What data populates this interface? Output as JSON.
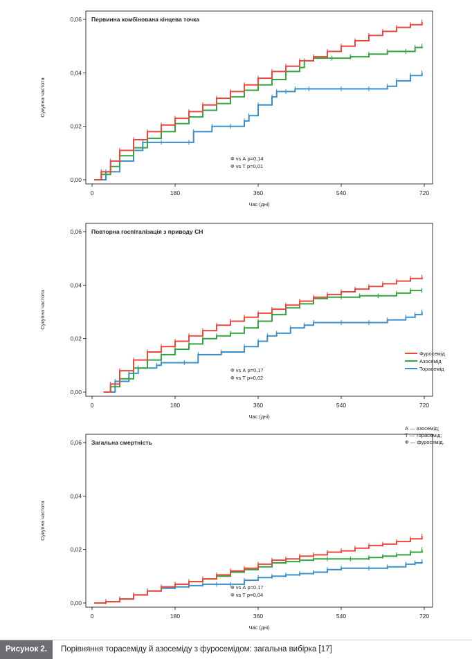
{
  "figure": {
    "caption_label": "Рисунок 2.",
    "caption_text": "Порівняння торасеміду й азосеміду з фуросемідом: загальна вибірка [17]"
  },
  "legend": [
    {
      "label": "Фуросемід",
      "color": "#e8483f"
    },
    {
      "label": "Азосемід",
      "color": "#33a53f"
    },
    {
      "label": "Торасемід",
      "color": "#3a8fcb"
    }
  ],
  "abbreviations": [
    "А — азосемід;",
    "Т — торасемід;",
    "Ф — фуросемід."
  ],
  "chart_data": [
    {
      "type": "line",
      "title": "Первинна комбінована кінцева точка",
      "xlabel": "Час (дні)",
      "ylabel": "Сукупна частота",
      "xlim": [
        0,
        720
      ],
      "ylim": [
        0,
        0.06
      ],
      "x_ticks": [
        "0",
        "180",
        "360",
        "540",
        "720"
      ],
      "y_ticks": [
        "0,00",
        "0,02",
        "0,04",
        "0,06"
      ],
      "annotations": [
        "Ф vs А p=0,14",
        "Ф vs Т p=0,01"
      ],
      "series": [
        {
          "name": "Фуросемід",
          "color": "#e8483f",
          "x": [
            5,
            20,
            40,
            60,
            90,
            120,
            150,
            180,
            210,
            240,
            270,
            300,
            330,
            360,
            390,
            420,
            450,
            480,
            510,
            540,
            570,
            600,
            630,
            660,
            690,
            715
          ],
          "y": [
            0.0,
            0.003,
            0.007,
            0.011,
            0.015,
            0.018,
            0.0205,
            0.023,
            0.0255,
            0.028,
            0.0305,
            0.033,
            0.0355,
            0.038,
            0.0405,
            0.0425,
            0.0445,
            0.046,
            0.048,
            0.05,
            0.052,
            0.054,
            0.0555,
            0.057,
            0.058,
            0.059
          ]
        },
        {
          "name": "Азосемід",
          "color": "#33a53f",
          "x": [
            5,
            20,
            40,
            60,
            90,
            120,
            150,
            180,
            210,
            240,
            270,
            300,
            330,
            360,
            390,
            420,
            450,
            460,
            480,
            520,
            560,
            600,
            640,
            680,
            700,
            715
          ],
          "y": [
            0.0,
            0.002,
            0.005,
            0.009,
            0.012,
            0.0155,
            0.018,
            0.021,
            0.0235,
            0.026,
            0.0285,
            0.031,
            0.0335,
            0.0355,
            0.0375,
            0.0405,
            0.042,
            0.0445,
            0.0455,
            0.0455,
            0.046,
            0.047,
            0.048,
            0.048,
            0.0495,
            0.05
          ]
        },
        {
          "name": "Торасемід",
          "color": "#3a8fcb",
          "x": [
            5,
            30,
            60,
            90,
            110,
            150,
            210,
            220,
            260,
            300,
            330,
            340,
            360,
            390,
            400,
            420,
            440,
            470,
            540,
            600,
            640,
            660,
            690,
            715
          ],
          "y": [
            0.0,
            0.003,
            0.007,
            0.011,
            0.014,
            0.014,
            0.014,
            0.018,
            0.02,
            0.02,
            0.022,
            0.024,
            0.028,
            0.031,
            0.033,
            0.033,
            0.034,
            0.034,
            0.034,
            0.034,
            0.035,
            0.037,
            0.039,
            0.04
          ]
        }
      ]
    },
    {
      "type": "line",
      "title": "Повторна госпіталізація з приводу СН",
      "xlabel": "Час (дні)",
      "ylabel": "Сукупна частота",
      "xlim": [
        0,
        720
      ],
      "ylim": [
        0,
        0.06
      ],
      "x_ticks": [
        "0",
        "180",
        "360",
        "540",
        "720"
      ],
      "y_ticks": [
        "0,00",
        "0,02",
        "0,04",
        "0,06"
      ],
      "annotations": [
        "Ф vs А p=0,17",
        "Ф vs Т p=0,02"
      ],
      "series": [
        {
          "name": "Фуросемід",
          "color": "#e8483f",
          "x": [
            25,
            40,
            60,
            90,
            120,
            150,
            180,
            210,
            240,
            270,
            300,
            330,
            360,
            390,
            420,
            450,
            480,
            510,
            540,
            570,
            600,
            630,
            660,
            690,
            715
          ],
          "y": [
            0.0,
            0.003,
            0.008,
            0.012,
            0.015,
            0.017,
            0.019,
            0.021,
            0.023,
            0.025,
            0.0265,
            0.028,
            0.0295,
            0.031,
            0.0325,
            0.034,
            0.0355,
            0.0365,
            0.0375,
            0.0385,
            0.0395,
            0.0405,
            0.0415,
            0.0425,
            0.043
          ]
        },
        {
          "name": "Азосемід",
          "color": "#33a53f",
          "x": [
            25,
            40,
            60,
            90,
            120,
            150,
            180,
            210,
            240,
            270,
            300,
            330,
            360,
            390,
            420,
            450,
            480,
            510,
            540,
            580,
            620,
            660,
            690,
            715
          ],
          "y": [
            0.0,
            0.002,
            0.005,
            0.009,
            0.012,
            0.014,
            0.016,
            0.018,
            0.02,
            0.021,
            0.022,
            0.024,
            0.0265,
            0.029,
            0.0315,
            0.033,
            0.035,
            0.0355,
            0.0355,
            0.036,
            0.036,
            0.037,
            0.038,
            0.038
          ]
        },
        {
          "name": "Торасемід",
          "color": "#3a8fcb",
          "x": [
            25,
            50,
            80,
            100,
            140,
            150,
            200,
            230,
            280,
            330,
            360,
            380,
            400,
            430,
            460,
            480,
            540,
            600,
            640,
            680,
            700,
            715
          ],
          "y": [
            0.0,
            0.004,
            0.007,
            0.009,
            0.01,
            0.011,
            0.011,
            0.014,
            0.015,
            0.017,
            0.019,
            0.021,
            0.022,
            0.024,
            0.025,
            0.026,
            0.026,
            0.026,
            0.027,
            0.028,
            0.029,
            0.03
          ]
        }
      ]
    },
    {
      "type": "line",
      "title": "Загальна смертність",
      "xlabel": "Час (дні)",
      "ylabel": "Сукупна частота",
      "xlim": [
        0,
        720
      ],
      "ylim": [
        0,
        0.06
      ],
      "x_ticks": [
        "0",
        "180",
        "360",
        "540",
        "720"
      ],
      "y_ticks": [
        "0,00",
        "0,02",
        "0,04",
        "0,06"
      ],
      "annotations": [
        "Ф vs А p=0,17",
        "Ф vs Т p=0,04"
      ],
      "series": [
        {
          "name": "Фуросемід",
          "color": "#e8483f",
          "x": [
            5,
            30,
            60,
            90,
            120,
            150,
            180,
            210,
            240,
            270,
            300,
            330,
            360,
            390,
            420,
            450,
            480,
            510,
            540,
            570,
            600,
            630,
            660,
            690,
            715
          ],
          "y": [
            0.0,
            0.0005,
            0.0015,
            0.003,
            0.0045,
            0.006,
            0.007,
            0.008,
            0.009,
            0.0105,
            0.012,
            0.013,
            0.0145,
            0.016,
            0.0165,
            0.0175,
            0.018,
            0.019,
            0.0195,
            0.0205,
            0.0215,
            0.022,
            0.023,
            0.024,
            0.025
          ]
        },
        {
          "name": "Азосемід",
          "color": "#33a53f",
          "x": [
            5,
            30,
            60,
            90,
            120,
            150,
            180,
            210,
            240,
            270,
            300,
            330,
            360,
            390,
            420,
            450,
            480,
            510,
            560,
            600,
            630,
            660,
            690,
            715
          ],
          "y": [
            0.0,
            0.0005,
            0.0015,
            0.003,
            0.0045,
            0.006,
            0.007,
            0.008,
            0.009,
            0.01,
            0.0115,
            0.0125,
            0.0135,
            0.015,
            0.0155,
            0.016,
            0.0165,
            0.0165,
            0.0165,
            0.017,
            0.0175,
            0.018,
            0.019,
            0.02
          ]
        },
        {
          "name": "Торасемід",
          "color": "#3a8fcb",
          "x": [
            5,
            30,
            60,
            90,
            120,
            150,
            180,
            210,
            240,
            270,
            300,
            330,
            360,
            390,
            420,
            450,
            480,
            510,
            540,
            600,
            640,
            680,
            700,
            715
          ],
          "y": [
            0.0,
            0.0005,
            0.0015,
            0.003,
            0.0045,
            0.0055,
            0.006,
            0.0065,
            0.007,
            0.007,
            0.007,
            0.0085,
            0.0095,
            0.01,
            0.0105,
            0.011,
            0.0115,
            0.0125,
            0.013,
            0.013,
            0.0135,
            0.0145,
            0.015,
            0.0155
          ]
        }
      ]
    }
  ]
}
